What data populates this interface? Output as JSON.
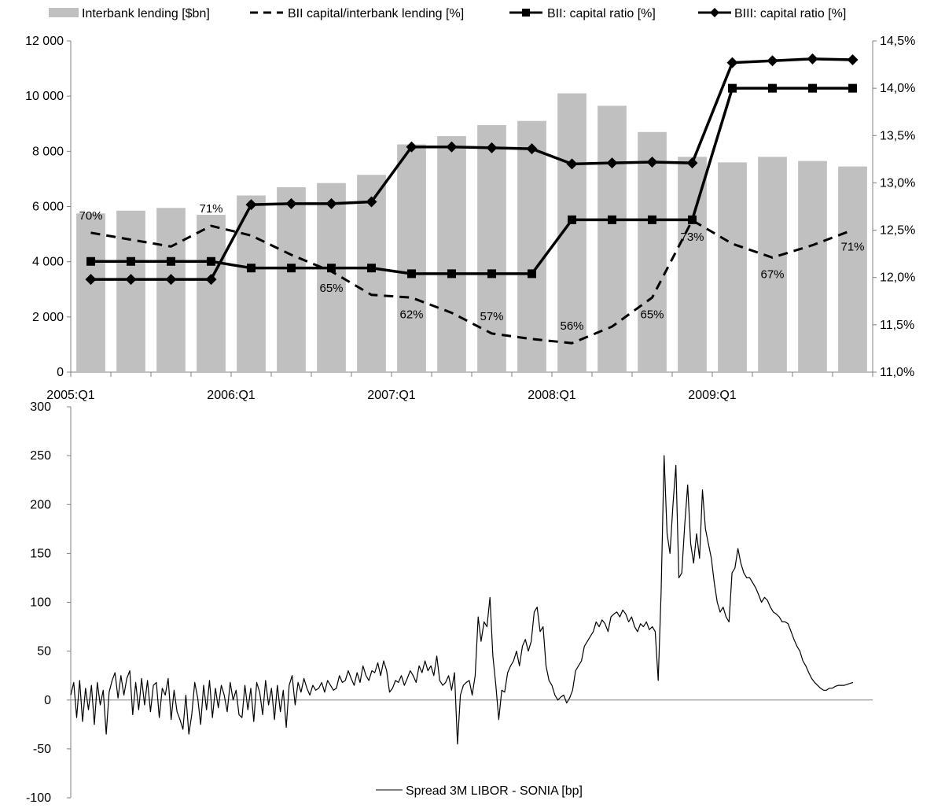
{
  "chart_data": [
    {
      "type": "bar",
      "title": "",
      "legend": {
        "placement": "top",
        "items": [
          {
            "label": "Interbank lending [$bn]",
            "style": "bar"
          },
          {
            "label": "BII capital/interbank lending [%]",
            "style": "dashed"
          },
          {
            "label": "BII: capital ratio [%]",
            "style": "square-marker"
          },
          {
            "label": "BIII: capital ratio [%]",
            "style": "diamond-marker"
          }
        ]
      },
      "x_tick_labels": [
        "2005:Q1",
        "2006:Q1",
        "2007:Q1",
        "2008:Q1",
        "2009:Q1"
      ],
      "n_quarters": 20,
      "y_left": {
        "ylim": [
          0,
          12000
        ],
        "ticks": [
          "0",
          "2 000",
          "4 000",
          "6 000",
          "8 000",
          "10 000",
          "12 000"
        ]
      },
      "y_right": {
        "ylim": [
          11.0,
          14.5
        ],
        "ticks": [
          "11,0%",
          "11,5%",
          "12,0%",
          "12,5%",
          "13,0%",
          "13,5%",
          "14,0%",
          "14,5%"
        ]
      },
      "series": [
        {
          "name": "Interbank lending [$bn]",
          "type": "bar",
          "axis": "left",
          "color": "#c0c0c0",
          "values": [
            5750,
            5850,
            5950,
            5700,
            6400,
            6700,
            6850,
            7150,
            8250,
            8550,
            8950,
            9100,
            10100,
            9650,
            8700,
            7800,
            7600,
            7800,
            7650,
            7450
          ]
        },
        {
          "name": "BII capital/interbank lending [%]",
          "type": "line",
          "style": "dashed",
          "axis": "left",
          "values": [
            5050,
            4800,
            4550,
            5300,
            4950,
            4250,
            3650,
            2800,
            2700,
            2150,
            1400,
            1200,
            1050,
            1650,
            2700,
            5500,
            4650,
            4150,
            4600,
            5150
          ],
          "labels": [
            {
              "index": 0,
              "text": "70%",
              "pos": "above"
            },
            {
              "index": 3,
              "text": "71%",
              "pos": "above"
            },
            {
              "index": 6,
              "text": "65%",
              "pos": "below"
            },
            {
              "index": 8,
              "text": "62%",
              "pos": "below"
            },
            {
              "index": 10,
              "text": "57%",
              "pos": "above"
            },
            {
              "index": 12,
              "text": "56%",
              "pos": "above"
            },
            {
              "index": 14,
              "text": "65%",
              "pos": "below"
            },
            {
              "index": 15,
              "text": "73%",
              "pos": "below"
            },
            {
              "index": 17,
              "text": "67%",
              "pos": "below"
            },
            {
              "index": 19,
              "text": "71%",
              "pos": "below"
            }
          ]
        },
        {
          "name": "BII: capital ratio [%]",
          "type": "line",
          "marker": "square",
          "axis": "right",
          "values": [
            12.17,
            12.17,
            12.17,
            12.17,
            12.1,
            12.1,
            12.1,
            12.1,
            12.04,
            12.04,
            12.04,
            12.04,
            12.61,
            12.61,
            12.61,
            12.61,
            14.0,
            14.0,
            14.0,
            14.0
          ]
        },
        {
          "name": "BIII: capital ratio [%]",
          "type": "line",
          "marker": "diamond",
          "axis": "right",
          "values": [
            11.98,
            11.98,
            11.98,
            11.98,
            12.77,
            12.78,
            12.78,
            12.8,
            13.38,
            13.38,
            13.37,
            13.36,
            13.2,
            13.21,
            13.22,
            13.21,
            14.27,
            14.29,
            14.31,
            14.3
          ]
        }
      ]
    },
    {
      "type": "line",
      "title": "",
      "ylim": [
        -100,
        300
      ],
      "y_ticks": [
        "-100",
        "-50",
        "0",
        "50",
        "100",
        "150",
        "200",
        "250",
        "300"
      ],
      "legend": {
        "placement": "bottom-center",
        "items": [
          {
            "label": "Spread 3M LIBOR - SONIA [bp]",
            "style": "line"
          }
        ]
      },
      "series": [
        {
          "name": "Spread 3M LIBOR - SONIA [bp]",
          "color": "#000000",
          "x_range": [
            "2005",
            "2009"
          ],
          "values": [
            5,
            18,
            -18,
            20,
            -22,
            12,
            -10,
            15,
            -25,
            18,
            -5,
            10,
            -35,
            8,
            20,
            28,
            2,
            25,
            5,
            22,
            30,
            -15,
            18,
            -10,
            22,
            -5,
            20,
            -12,
            15,
            18,
            -18,
            12,
            5,
            22,
            -20,
            10,
            -12,
            -20,
            -30,
            5,
            -35,
            -15,
            18,
            2,
            -25,
            15,
            -10,
            20,
            -18,
            12,
            -8,
            15,
            5,
            -12,
            18,
            0,
            10,
            -15,
            -18,
            15,
            -10,
            12,
            -22,
            18,
            8,
            -15,
            20,
            -5,
            12,
            -20,
            15,
            -12,
            10,
            -28,
            15,
            25,
            -5,
            18,
            8,
            22,
            12,
            5,
            15,
            10,
            12,
            18,
            8,
            20,
            15,
            10,
            12,
            25,
            18,
            20,
            30,
            22,
            15,
            28,
            18,
            35,
            25,
            20,
            30,
            28,
            38,
            25,
            40,
            30,
            8,
            12,
            20,
            18,
            25,
            15,
            22,
            30,
            25,
            18,
            35,
            28,
            40,
            30,
            35,
            25,
            45,
            20,
            15,
            18,
            25,
            10,
            28,
            -45,
            5,
            15,
            18,
            20,
            5,
            25,
            85,
            60,
            80,
            75,
            105,
            45,
            15,
            -20,
            10,
            8,
            28,
            35,
            40,
            50,
            35,
            55,
            62,
            50,
            60,
            90,
            95,
            70,
            75,
            35,
            20,
            15,
            5,
            0,
            3,
            5,
            -3,
            2,
            10,
            30,
            35,
            40,
            55,
            60,
            65,
            70,
            80,
            75,
            82,
            78,
            70,
            85,
            88,
            90,
            85,
            92,
            88,
            80,
            85,
            75,
            70,
            78,
            75,
            80,
            72,
            75,
            70,
            20,
            110,
            250,
            170,
            150,
            200,
            240,
            125,
            130,
            180,
            220,
            160,
            140,
            170,
            145,
            215,
            175,
            160,
            145,
            120,
            100,
            90,
            95,
            85,
            80,
            130,
            135,
            155,
            140,
            130,
            125,
            125,
            120,
            115,
            108,
            100,
            105,
            102,
            95,
            90,
            88,
            85,
            80,
            80,
            78,
            70,
            62,
            55,
            50,
            40,
            35,
            28,
            22,
            18,
            15,
            12,
            10,
            10,
            12,
            12,
            14,
            15,
            15,
            15,
            16,
            17,
            18
          ]
        }
      ]
    }
  ]
}
